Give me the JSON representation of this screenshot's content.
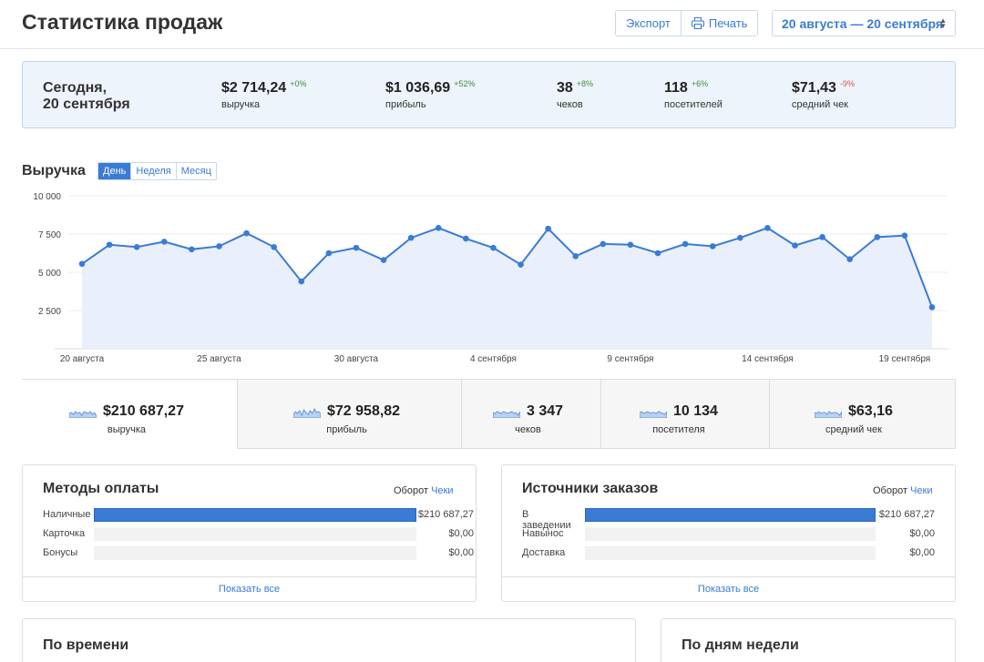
{
  "header": {
    "title": "Статистика продаж",
    "export_label": "Экспорт",
    "print_label": "Печать",
    "date_range": "20 августа — 20 сентября"
  },
  "today": {
    "label_line1": "Сегодня,",
    "label_line2": "20 сентября",
    "kpis": [
      {
        "value": "$2 714,24",
        "delta": "+0%",
        "trend": "up",
        "label": "выручка"
      },
      {
        "value": "$1 036,69",
        "delta": "+52%",
        "trend": "up",
        "label": "прибыль"
      },
      {
        "value": "38",
        "delta": "+8%",
        "trend": "up",
        "label": "чеков"
      },
      {
        "value": "118",
        "delta": "+6%",
        "trend": "up",
        "label": "посетителей"
      },
      {
        "value": "$71,43",
        "delta": "-9%",
        "trend": "down",
        "label": "средний чек"
      }
    ]
  },
  "revenue": {
    "title": "Выручка",
    "periods": [
      "День",
      "Неделя",
      "Месяц"
    ],
    "active_period": "День"
  },
  "chart_data": {
    "type": "area",
    "x": [
      "20 августа",
      "21 августа",
      "22 августа",
      "23 августа",
      "24 августа",
      "25 августа",
      "26 августа",
      "27 августа",
      "28 августа",
      "29 августа",
      "30 августа",
      "31 августа",
      "1 сентября",
      "2 сентября",
      "3 сентября",
      "4 сентября",
      "5 сентября",
      "6 сентября",
      "7 сентября",
      "8 сентября",
      "9 сентября",
      "10 сентября",
      "11 сентября",
      "12 сентября",
      "13 сентября",
      "14 сентября",
      "15 сентября",
      "16 сентября",
      "17 сентября",
      "18 сентября",
      "19 сентября",
      "20 сентября"
    ],
    "x_tick_labels": [
      "20 августа",
      "25 августа",
      "30 августа",
      "4 сентября",
      "9 сентября",
      "14 сентября",
      "19 сентября"
    ],
    "y_tick_labels": [
      "10 000",
      "7 500",
      "5 000",
      "2 500"
    ],
    "ylim": [
      0,
      10000
    ],
    "series": [
      {
        "values": [
          5550,
          6800,
          6650,
          7000,
          6500,
          6700,
          7550,
          6650,
          4400,
          6250,
          6600,
          5800,
          7250,
          7900,
          7200,
          6600,
          5500,
          7850,
          6050,
          6850,
          6800,
          6250,
          6850,
          6700,
          7250,
          7900,
          6750,
          7300,
          5850,
          7300,
          7400,
          2714
        ]
      }
    ],
    "color": "#3a7bd5",
    "fill": "#e9f0fb",
    "grid": true
  },
  "totals": [
    {
      "value": "$210 687,27",
      "label": "выручка"
    },
    {
      "value": "$72 958,82",
      "label": "прибыль"
    },
    {
      "value": "3 347",
      "label": "чеков"
    },
    {
      "value": "10 134",
      "label": "посетителя"
    },
    {
      "value": "$63,16",
      "label": "средний чек"
    }
  ],
  "payment_methods": {
    "title": "Методы оплаты",
    "switch_active": "Оборот",
    "switch_link": "Чеки",
    "rows": [
      {
        "name": "Наличные",
        "value": "$210 687,27",
        "fraction": 1.0
      },
      {
        "name": "Карточка",
        "value": "$0,00",
        "fraction": 0
      },
      {
        "name": "Бонусы",
        "value": "$0,00",
        "fraction": 0
      }
    ],
    "show_all": "Показать все"
  },
  "order_sources": {
    "title": "Источники заказов",
    "switch_active": "Оборот",
    "switch_link": "Чеки",
    "rows": [
      {
        "name": "В заведении",
        "value": "$210 687,27",
        "fraction": 1.0
      },
      {
        "name": "Навынос",
        "value": "$0,00",
        "fraction": 0
      },
      {
        "name": "Доставка",
        "value": "$0,00",
        "fraction": 0
      }
    ],
    "show_all": "Показать все"
  },
  "by_time": {
    "title": "По времени"
  },
  "by_weekday": {
    "title": "По дням недели"
  },
  "colors": {
    "accent": "#3a7bd5",
    "positive": "#3a8f3a",
    "negative": "#d9534f"
  }
}
